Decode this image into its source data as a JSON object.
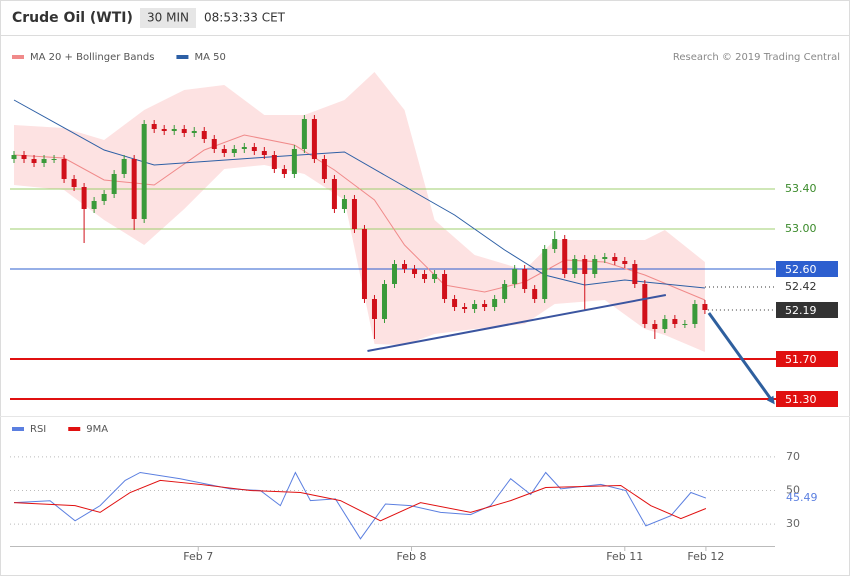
{
  "header": {
    "title": "Crude Oil (WTI)",
    "interval": "30 MIN",
    "time": "08:53:33 CET"
  },
  "credit": "Research © 2019 Trading Central",
  "chart_data": [
    {
      "type": "candlestick",
      "xlim": [
        -0.4,
        76
      ],
      "ylim": [
        51.19,
        54.94
      ],
      "up_color": "#3a9a3a",
      "down_color": "#d0101a",
      "candles": {
        "open": [
          53.7,
          53.74,
          53.7,
          53.66,
          53.7,
          53.7,
          53.5,
          53.42,
          53.2,
          53.28,
          53.35,
          53.55,
          53.7,
          53.1,
          54.05,
          54.0,
          53.98,
          54.0,
          53.96,
          53.98,
          53.9,
          53.8,
          53.76,
          53.8,
          53.82,
          53.78,
          53.74,
          53.6,
          53.55,
          53.8,
          54.1,
          53.7,
          53.5,
          53.2,
          53.3,
          53.0,
          52.3,
          52.1,
          52.45,
          52.65,
          52.6,
          52.55,
          52.5,
          52.55,
          52.3,
          52.22,
          52.2,
          52.25,
          52.22,
          52.3,
          52.45,
          52.6,
          52.4,
          52.3,
          52.8,
          52.9,
          52.55,
          52.7,
          52.55,
          52.7,
          52.72,
          52.68,
          52.65,
          52.45,
          52.05,
          52.0,
          52.1,
          52.05,
          52.05,
          52.25
        ],
        "high": [
          53.78,
          53.78,
          53.74,
          53.74,
          53.74,
          53.74,
          53.54,
          53.46,
          53.32,
          53.39,
          53.59,
          53.74,
          53.74,
          54.09,
          54.09,
          54.04,
          54.04,
          54.04,
          54.02,
          54.02,
          53.94,
          53.84,
          53.84,
          53.86,
          53.86,
          53.82,
          53.78,
          53.64,
          53.84,
          54.14,
          54.14,
          53.74,
          53.54,
          53.34,
          53.34,
          53.04,
          52.34,
          52.49,
          52.69,
          52.69,
          52.64,
          52.59,
          52.59,
          52.59,
          52.34,
          52.26,
          52.29,
          52.29,
          52.34,
          52.49,
          52.64,
          52.64,
          52.44,
          52.84,
          52.98,
          52.94,
          52.74,
          52.74,
          52.74,
          52.76,
          52.76,
          52.72,
          52.69,
          52.49,
          52.09,
          52.14,
          52.14,
          52.09,
          52.29,
          52.29
        ],
        "low": [
          53.66,
          53.66,
          53.62,
          53.62,
          53.66,
          53.46,
          53.38,
          52.86,
          53.16,
          53.24,
          53.31,
          53.51,
          52.99,
          53.06,
          53.96,
          53.94,
          53.94,
          53.92,
          53.92,
          53.86,
          53.76,
          53.72,
          53.72,
          53.76,
          53.74,
          53.7,
          53.56,
          53.51,
          53.51,
          53.76,
          53.66,
          53.46,
          53.16,
          53.16,
          52.96,
          52.26,
          51.9,
          52.06,
          52.41,
          52.56,
          52.51,
          52.46,
          52.46,
          52.26,
          52.18,
          52.16,
          52.16,
          52.18,
          52.18,
          52.26,
          52.41,
          52.36,
          52.26,
          52.26,
          52.76,
          52.51,
          52.51,
          52.19,
          52.51,
          52.66,
          52.64,
          52.61,
          52.41,
          52.01,
          51.9,
          51.96,
          52.01,
          52.01,
          52.01,
          52.15
        ],
        "close": [
          53.74,
          53.7,
          53.66,
          53.7,
          53.7,
          53.5,
          53.42,
          53.2,
          53.28,
          53.35,
          53.55,
          53.7,
          53.1,
          54.05,
          54.0,
          53.98,
          54.0,
          53.96,
          53.98,
          53.9,
          53.8,
          53.76,
          53.8,
          53.82,
          53.78,
          53.74,
          53.6,
          53.55,
          53.8,
          54.1,
          53.7,
          53.5,
          53.2,
          53.3,
          53.0,
          52.3,
          52.1,
          52.45,
          52.65,
          52.6,
          52.55,
          52.5,
          52.55,
          52.3,
          52.22,
          52.2,
          52.25,
          52.22,
          52.3,
          52.45,
          52.6,
          52.4,
          52.3,
          52.8,
          52.9,
          52.55,
          52.7,
          52.55,
          52.7,
          52.72,
          52.68,
          52.65,
          52.45,
          52.05,
          52.0,
          52.1,
          52.05,
          52.05,
          52.25,
          52.19
        ]
      },
      "current_price_tag": true,
      "current_price_color": "#333333",
      "series": [
        {
          "name": "MA 20 + Bollinger Bands",
          "color": "#f08a8a",
          "band_color": "#fde2e2",
          "x": [
            0,
            5,
            9,
            14,
            19,
            23,
            28,
            32,
            36,
            39,
            43,
            47,
            51,
            55,
            59,
            63,
            69
          ],
          "values": [
            53.74,
            53.71,
            53.49,
            53.44,
            53.79,
            53.94,
            53.84,
            53.59,
            53.29,
            52.84,
            52.44,
            52.37,
            52.47,
            52.69,
            52.67,
            52.54,
            52.29
          ],
          "band_x": [
            0,
            5,
            9,
            13,
            17,
            21,
            25,
            29,
            33,
            36,
            39,
            42,
            46,
            51,
            54,
            59,
            63,
            65,
            69
          ],
          "band_upper": [
            54.04,
            54.01,
            53.89,
            54.19,
            54.39,
            54.44,
            54.14,
            54.14,
            54.29,
            54.57,
            54.19,
            53.09,
            52.74,
            52.59,
            52.89,
            52.89,
            52.89,
            52.99,
            52.67
          ],
          "band_lower": [
            53.44,
            53.39,
            53.09,
            52.84,
            53.2,
            53.6,
            53.64,
            53.55,
            53.29,
            51.85,
            51.84,
            51.95,
            52.0,
            52.05,
            52.25,
            52.29,
            52.0,
            51.94,
            51.77
          ]
        },
        {
          "name": "MA 50",
          "color": "#2d5fa5",
          "x": [
            0,
            9,
            14,
            24,
            33,
            37,
            44,
            49,
            53,
            57,
            61,
            69
          ],
          "values": [
            54.29,
            53.79,
            53.64,
            53.71,
            53.77,
            53.54,
            53.14,
            52.79,
            52.54,
            52.44,
            52.49,
            52.41
          ]
        }
      ],
      "levels": [
        {
          "value": 53.4,
          "label": "53.40",
          "style": "line",
          "color": "#9fcf6f"
        },
        {
          "value": 53.0,
          "label": "53.00",
          "style": "line",
          "color": "#9fcf6f"
        },
        {
          "value": 52.6,
          "label": "52.60",
          "style": "tag",
          "color": "#2d5fcf"
        },
        {
          "value": 52.42,
          "style": "dotted",
          "color": "#333333"
        },
        {
          "value": 51.7,
          "label": "51.70",
          "style": "tag",
          "color": "#e01010"
        },
        {
          "value": 51.3,
          "label": "51.30",
          "style": "tag",
          "color": "#e01010"
        }
      ],
      "trendline": {
        "x": [
          35.3,
          65.1
        ],
        "y": [
          51.78,
          52.34
        ],
        "color": "#3b55a0"
      },
      "arrow": {
        "x": [
          69.4,
          75.8
        ],
        "y": [
          52.16,
          51.27
        ],
        "color": "#2e5f9e"
      }
    },
    {
      "type": "line",
      "xlim": [
        -0.4,
        76
      ],
      "ylim": [
        20,
        80
      ],
      "yticks": [
        30,
        50,
        70
      ],
      "grid": true,
      "xticks": [
        {
          "value": 18.4,
          "label": "Feb 7"
        },
        {
          "value": 39.7,
          "label": "Feb 8"
        },
        {
          "value": 61,
          "label": "Feb 11"
        },
        {
          "value": 69.1,
          "label": "Feb 12"
        }
      ],
      "series": [
        {
          "name": "RSI",
          "color": "#5b7fe0",
          "x": [
            0,
            3.6,
            6.1,
            8.6,
            11.1,
            12.6,
            16.6,
            21.6,
            24.6,
            26.6,
            28.1,
            29.6,
            32.1,
            34.6,
            37.1,
            39.6,
            42.6,
            45.6,
            47.6,
            49.6,
            51.6,
            53.1,
            54.6,
            58.6,
            61.1,
            63.1,
            65.6,
            67.6,
            69.1
          ],
          "values": [
            42.8,
            43.9,
            32,
            41,
            56,
            60.7,
            57,
            51,
            50,
            41,
            60.7,
            44,
            45,
            21.3,
            42,
            41,
            37,
            35.7,
            41,
            57,
            47.6,
            60.7,
            51,
            53.6,
            50,
            29,
            35,
            48.8,
            45.49
          ]
        },
        {
          "name": "9MA",
          "color": "#e01010",
          "x": [
            0,
            6.1,
            8.6,
            11.6,
            14.6,
            18.6,
            23.6,
            28.6,
            32.6,
            36.6,
            40.6,
            45.6,
            49.6,
            53.1,
            60.6,
            63.6,
            66.6,
            69.1
          ],
          "values": [
            42.8,
            41,
            37,
            48.8,
            56,
            53.6,
            50,
            48.8,
            44,
            32,
            42.8,
            37,
            44,
            51.8,
            53,
            41,
            33.3,
            39.3
          ]
        }
      ]
    }
  ]
}
